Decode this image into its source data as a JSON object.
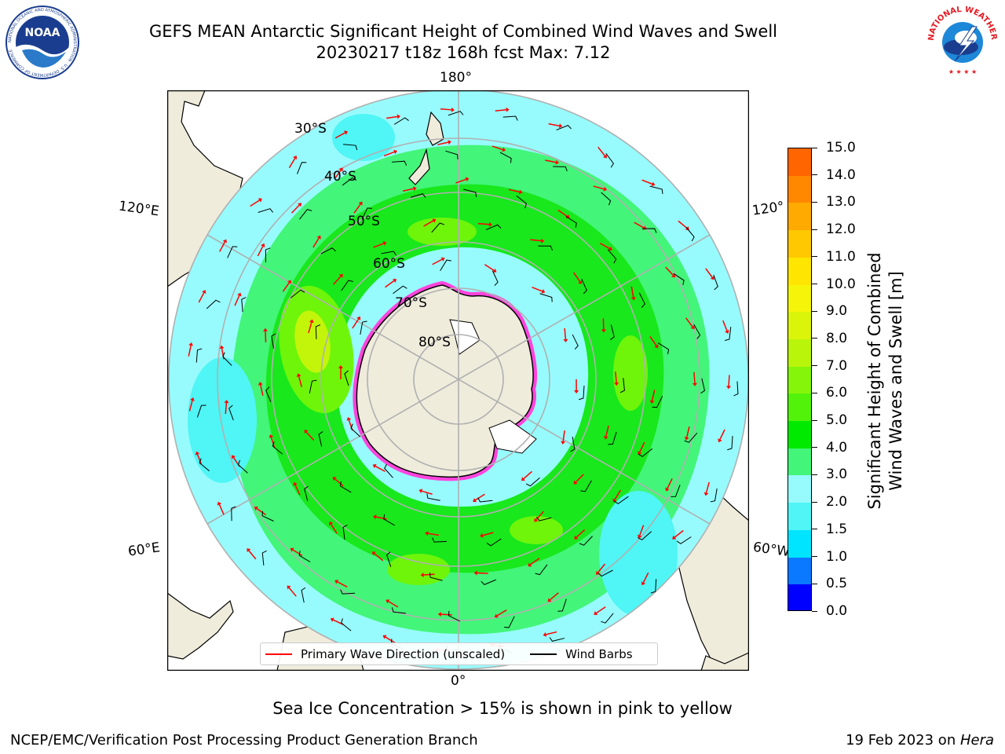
{
  "title": {
    "line1": "GEFS MEAN Antarctic Significant Height of Combined Wind Waves and Swell",
    "line2": "20230217 t18z 168h fcst   Max: 7.12"
  },
  "logos": {
    "noaa_text": "NOAA",
    "noaa_ring_text": "NATIONAL OCEANIC AND ATMOSPHERIC ADMINISTRATION · U.S. DEPARTMENT OF COMMERCE",
    "nws_ring_text": "NATIONAL WEATHER SERVICE"
  },
  "map": {
    "projection": "south polar stereographic",
    "longitude_labels": {
      "top": "180°",
      "bottom": "0°",
      "upper_left": "120°E",
      "upper_right": "120°",
      "lower_left": "60°E",
      "lower_right": "60°W"
    },
    "latitude_labels": [
      "30°S",
      "40°S",
      "50°S",
      "60°S",
      "70°S",
      "80°S"
    ],
    "colors": {
      "land": "#efecdc",
      "ocean_field": "#97fbfd",
      "light_green": "#43f579",
      "green": "#18e81c",
      "lime": "#6ef50a",
      "yellow_green": "#c3f50a",
      "sea_ice_pink": "#ff44dd",
      "grid": "#b0b0b0",
      "arrow": "#ff0000",
      "barb": "#000000"
    }
  },
  "colorbar": {
    "title_line1": "Significant Height of Combined",
    "title_line2": "Wind Waves and Swell [m]",
    "ticks": [
      "0.0",
      "0.5",
      "1.0",
      "1.5",
      "2.0",
      "3.0",
      "4.0",
      "5.0",
      "6.0",
      "7.0",
      "8.0",
      "9.0",
      "10.0",
      "11.0",
      "12.0",
      "13.0",
      "14.0",
      "15.0"
    ],
    "colors": [
      "#0000ff",
      "#0a78ff",
      "#00e5ff",
      "#50f5f5",
      "#97fbfd",
      "#43f579",
      "#00ea00",
      "#52f20a",
      "#85f50a",
      "#b8f50a",
      "#daf50a",
      "#f5f50a",
      "#ffe600",
      "#ffc800",
      "#ffaa00",
      "#ff8800",
      "#ff6600",
      "#ff4400",
      "#ff2200",
      "#ff0000"
    ]
  },
  "legend": {
    "wave_label": "Primary Wave Direction (unscaled)",
    "wind_label": "Wind Barbs",
    "wave_color": "#ff0000",
    "wind_color": "#000000"
  },
  "caption": "Sea Ice Concentration > 15% is shown in pink to yellow",
  "footer": {
    "left": "NCEP/EMC/Verification Post Processing Product Generation Branch",
    "right_date": "19 Feb 2023 on ",
    "right_machine": "Hera"
  }
}
